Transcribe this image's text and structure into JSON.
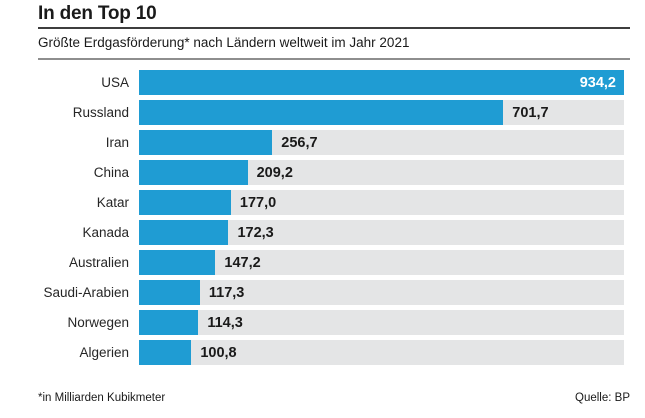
{
  "header": {
    "title": "In den Top 10",
    "subtitle": "Größte Erdgasförderung* nach Ländern weltweit im Jahr 2021"
  },
  "chart_data": {
    "type": "bar",
    "orientation": "horizontal",
    "title": "In den Top 10",
    "subtitle": "Größte Erdgasförderung* nach Ländern weltweit im Jahr 2021",
    "categories": [
      "USA",
      "Russland",
      "Iran",
      "China",
      "Katar",
      "Kanada",
      "Australien",
      "Saudi-Arabien",
      "Norwegen",
      "Algerien"
    ],
    "values": [
      934.2,
      701.7,
      256.7,
      209.2,
      177.0,
      172.3,
      147.2,
      117.3,
      114.3,
      100.8
    ],
    "value_labels": [
      "934,2",
      "701,7",
      "256,7",
      "209,2",
      "177,0",
      "172,3",
      "147,2",
      "117,3",
      "114,3",
      "100,8"
    ],
    "xlim": [
      0,
      934.2
    ],
    "grid": false,
    "legend": false,
    "bar_color": "#1f9cd3",
    "track_color": "#e4e5e6",
    "inside_label_indices": [
      0
    ]
  },
  "footer": {
    "note": "*in Milliarden Kubikmeter",
    "source": "Quelle: BP"
  }
}
